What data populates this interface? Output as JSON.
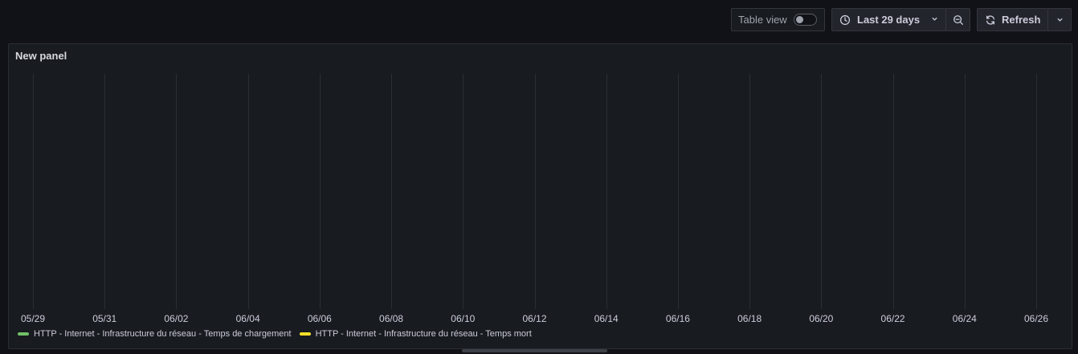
{
  "toolbar": {
    "table_view_label": "Table view",
    "table_view_on": false,
    "time_range_label": "Last 29 days",
    "refresh_label": "Refresh"
  },
  "panel": {
    "title": "New panel"
  },
  "chart_data": {
    "type": "line",
    "x_ticks": [
      "05/29",
      "05/31",
      "06/02",
      "06/04",
      "06/06",
      "06/08",
      "06/10",
      "06/12",
      "06/14",
      "06/16",
      "06/18",
      "06/20",
      "06/22",
      "06/24",
      "06/26"
    ],
    "series": [
      {
        "name": "HTTP - Internet - Infrastructure du réseau - Temps de chargement",
        "color": "#73bf69",
        "values": []
      },
      {
        "name": "HTTP - Internet - Infrastructure du réseau - Temps mort",
        "color": "#fade2a",
        "values": []
      }
    ],
    "grid": "vertical",
    "legend_placement": "bottom-left"
  },
  "icons": {
    "time": "clock-icon",
    "zoom": "zoom-out-icon",
    "refresh": "refresh-icon",
    "caret": "chevron-down-icon"
  }
}
